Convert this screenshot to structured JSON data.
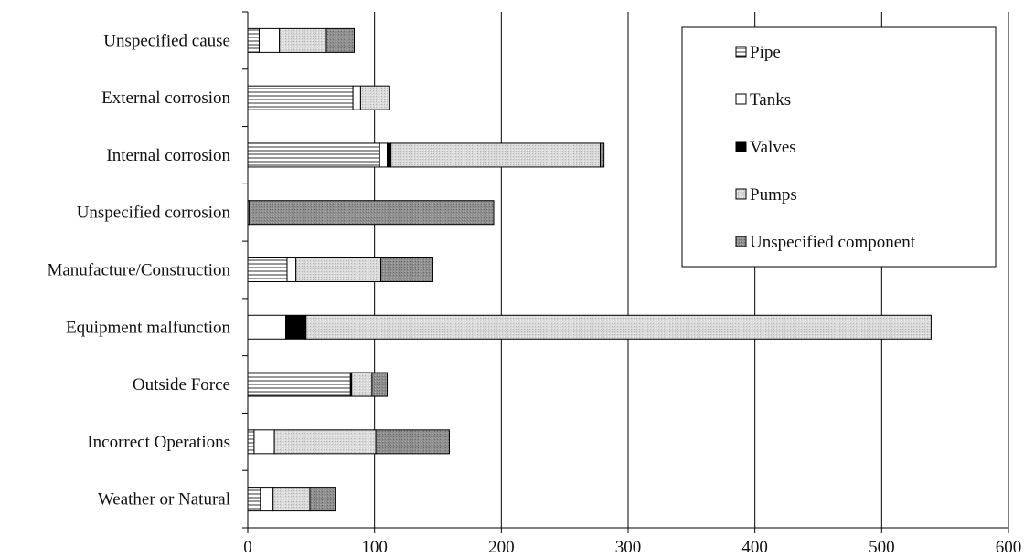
{
  "chart_data": {
    "type": "bar",
    "orientation": "horizontal",
    "stacked": true,
    "categories": [
      "Unspecified cause",
      "External corrosion",
      "Internal corrosion",
      "Unspecified corrosion",
      "Manufacture/Construction",
      "Equipment malfunction",
      "Outside Force",
      "Incorrect Operations",
      "Weather or Natural"
    ],
    "series": [
      {
        "name": "Pipe",
        "values": [
          9,
          83,
          104,
          0,
          31,
          0,
          81,
          5,
          10
        ],
        "pattern": "hstripe"
      },
      {
        "name": "Tanks",
        "values": [
          16,
          6,
          6,
          1,
          7,
          30,
          0,
          16,
          10
        ],
        "pattern": "white"
      },
      {
        "name": "Valves",
        "values": [
          0,
          0,
          3,
          0,
          0,
          16,
          1,
          0,
          0
        ],
        "pattern": "black"
      },
      {
        "name": "Pumps",
        "values": [
          37,
          23,
          165,
          0,
          67,
          493,
          16,
          80,
          29
        ],
        "pattern": "lightgray"
      },
      {
        "name": "Unspecified component",
        "values": [
          22,
          0,
          3,
          193,
          41,
          0,
          12,
          58,
          20
        ],
        "pattern": "darkgray"
      }
    ],
    "xlim": [
      0,
      600
    ],
    "xticks": [
      0,
      100,
      200,
      300,
      400,
      500,
      600
    ],
    "grid": "vertical",
    "legend_position": "top-right",
    "title": "",
    "xlabel": "",
    "ylabel": ""
  }
}
